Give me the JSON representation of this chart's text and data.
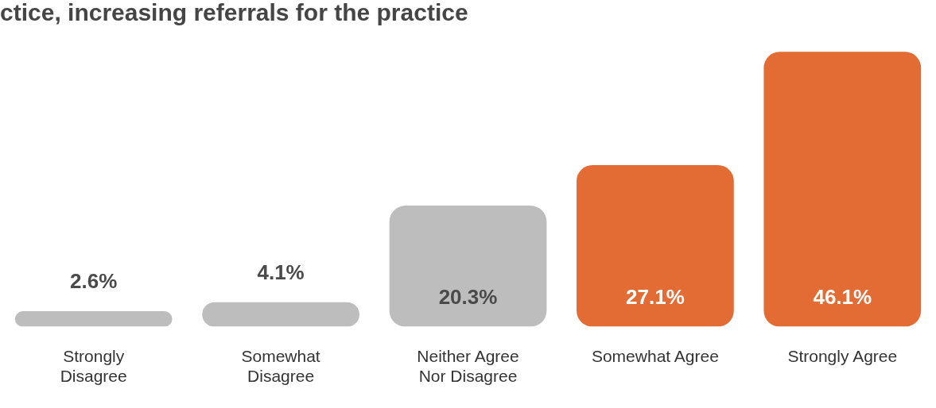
{
  "chart_data": {
    "type": "bar",
    "title": "ctice, increasing referrals for the practice",
    "categories": [
      "Strongly Disagree",
      "Somewhat Disagree",
      "Neither Agree Nor Disagree",
      "Somewhat Agree",
      "Strongly Agree"
    ],
    "values": [
      2.6,
      4.1,
      20.3,
      27.1,
      46.1
    ],
    "colors": [
      "#bdbdbd",
      "#bdbdbd",
      "#bdbdbd",
      "#e36c35",
      "#e36c35"
    ],
    "value_labels": [
      "2.6%",
      "4.1%",
      "20.3%",
      "27.1%",
      "46.1%"
    ]
  }
}
